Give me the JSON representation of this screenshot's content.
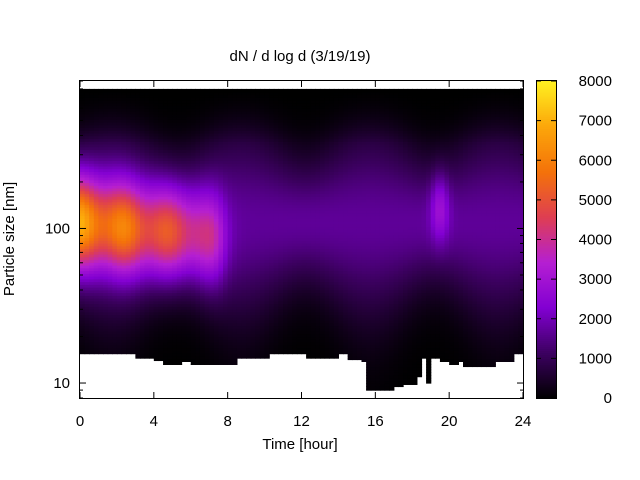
{
  "chart_data": {
    "type": "heatmap",
    "title": "dN / d log d (3/19/19)",
    "xlabel": "Time [hour]",
    "ylabel": "Particle size [nm]",
    "xlim": [
      0,
      24
    ],
    "ylim": [
      8,
      900
    ],
    "yscale": "log",
    "xticks": [
      0,
      4,
      8,
      12,
      16,
      20,
      24
    ],
    "yticks": [
      10,
      100
    ],
    "colorbar": {
      "range": [
        0,
        8000
      ],
      "ticks": [
        0,
        1000,
        2000,
        3000,
        4000,
        5000,
        6000,
        7000,
        8000
      ],
      "colormap": [
        "#000000",
        "#3c0060",
        "#8200d2",
        "#b51fd2",
        "#de3e52",
        "#f4720a",
        "#fca60a",
        "#fff020"
      ]
    },
    "grid": false,
    "upper_size_limit_nm": 800,
    "features": [
      {
        "description": "dominant mode",
        "time_range_hour": [
          0,
          8
        ],
        "center_nm": 110,
        "peak_value": 6500
      },
      {
        "description": "background",
        "time_range_hour": [
          8,
          24
        ],
        "center_nm": 110,
        "typical_value": 1700
      },
      {
        "description": "weak mode",
        "time_range_hour": [
          19,
          20
        ],
        "center_nm": 140,
        "peak_value": 3000
      }
    ],
    "lower_size_limit_nm": [
      [
        0,
        15.5
      ],
      [
        3.1,
        15.5
      ],
      [
        3.1,
        14.5
      ],
      [
        4.0,
        14.5
      ],
      [
        4.0,
        14.0
      ],
      [
        4.6,
        14.0
      ],
      [
        4.6,
        13.2
      ],
      [
        5.5,
        13.2
      ],
      [
        5.5,
        13.8
      ],
      [
        6.0,
        13.8
      ],
      [
        6.0,
        13.2
      ],
      [
        8.6,
        13.2
      ],
      [
        8.6,
        14.5
      ],
      [
        10.2,
        14.5
      ],
      [
        10.2,
        15.5
      ],
      [
        12.2,
        15.5
      ],
      [
        12.2,
        14.5
      ],
      [
        14.1,
        14.5
      ],
      [
        14.1,
        15.5
      ],
      [
        14.6,
        15.5
      ],
      [
        14.6,
        14.2
      ],
      [
        15.2,
        14.2
      ],
      [
        15.2,
        13.8
      ],
      [
        15.6,
        13.8
      ],
      [
        15.6,
        9.0
      ],
      [
        17.0,
        9.0
      ],
      [
        17.0,
        9.5
      ],
      [
        17.4,
        9.5
      ],
      [
        17.4,
        9.0
      ],
      [
        17.6,
        9.0
      ],
      [
        17.6,
        9.8
      ],
      [
        18.2,
        9.8
      ],
      [
        18.2,
        11.0
      ],
      [
        18.6,
        11.0
      ],
      [
        18.6,
        14.5
      ],
      [
        18.7,
        14.5
      ],
      [
        18.7,
        10.0
      ],
      [
        19.1,
        10.0
      ],
      [
        19.1,
        14.5
      ],
      [
        19.5,
        14.5
      ],
      [
        19.5,
        13.8
      ],
      [
        19.9,
        13.8
      ],
      [
        19.9,
        13.2
      ],
      [
        20.4,
        13.2
      ],
      [
        20.4,
        13.8
      ],
      [
        20.8,
        13.8
      ],
      [
        20.8,
        12.8
      ],
      [
        22.6,
        12.8
      ],
      [
        22.6,
        13.8
      ],
      [
        23.4,
        13.8
      ],
      [
        23.4,
        15.5
      ],
      [
        24,
        15.5
      ]
    ]
  }
}
